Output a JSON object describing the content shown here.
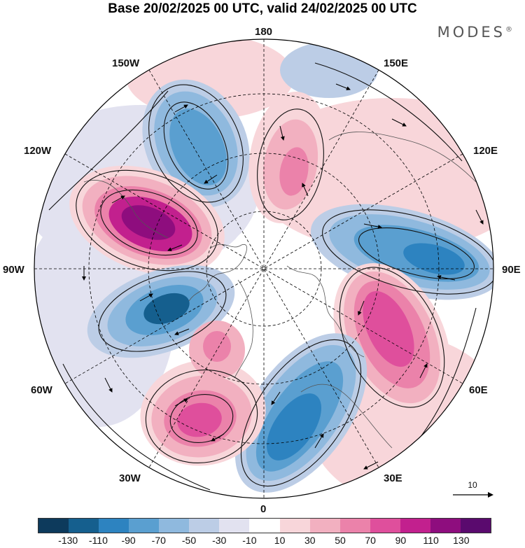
{
  "title": "Base 20/02/2025 00 UTC, valid 24/02/2025 00 UTC",
  "brand": "MODES",
  "brand_mark": "®",
  "longitude_labels": {
    "top": "180",
    "bottom": "0",
    "left": "90W",
    "right": "90E",
    "upper_left_outer": "150W",
    "upper_left_mid": "120W",
    "upper_right_outer": "150E",
    "upper_right_mid": "120E",
    "lower_left_mid": "60W",
    "lower_left_outer": "30W",
    "lower_right_mid": "60E",
    "lower_right_outer": "30E"
  },
  "reference_vector": {
    "label": "10"
  },
  "colorbar": {
    "colors": [
      "#0d3a5c",
      "#155f8e",
      "#2d83c0",
      "#5a9fd0",
      "#8fb9de",
      "#bccde6",
      "#e2e2f0",
      "#ffffff",
      "#f8d6da",
      "#f2b0c0",
      "#eb82aa",
      "#df4f9c",
      "#c2208e",
      "#8e0d7e",
      "#5a0a6e"
    ],
    "tick_labels": [
      "-130",
      "-110",
      "-90",
      "-70",
      "-50",
      "-30",
      "-10",
      "10",
      "30",
      "50",
      "70",
      "90",
      "110",
      "130"
    ]
  },
  "map_data": {
    "projection": "north-polar-stereographic",
    "field": "height anomaly with wind streamlines",
    "anomaly_centers": [
      {
        "sign": "negative",
        "lon": -165,
        "lat": 52,
        "level": -70
      },
      {
        "sign": "positive",
        "lon": 175,
        "lat": 65,
        "level": 70
      },
      {
        "sign": "positive",
        "lon": -125,
        "lat": 55,
        "level": 110
      },
      {
        "sign": "negative",
        "lon": 110,
        "lat": 55,
        "level": -70
      },
      {
        "sign": "positive",
        "lon": 55,
        "lat": 55,
        "level": 90
      },
      {
        "sign": "negative",
        "lon": 15,
        "lat": 50,
        "level": -90
      },
      {
        "sign": "positive",
        "lon": -30,
        "lat": 45,
        "level": 90
      },
      {
        "sign": "positive",
        "lon": -20,
        "lat": 65,
        "level": 50
      },
      {
        "sign": "negative",
        "lon": -70,
        "lat": 60,
        "level": -110
      }
    ]
  }
}
